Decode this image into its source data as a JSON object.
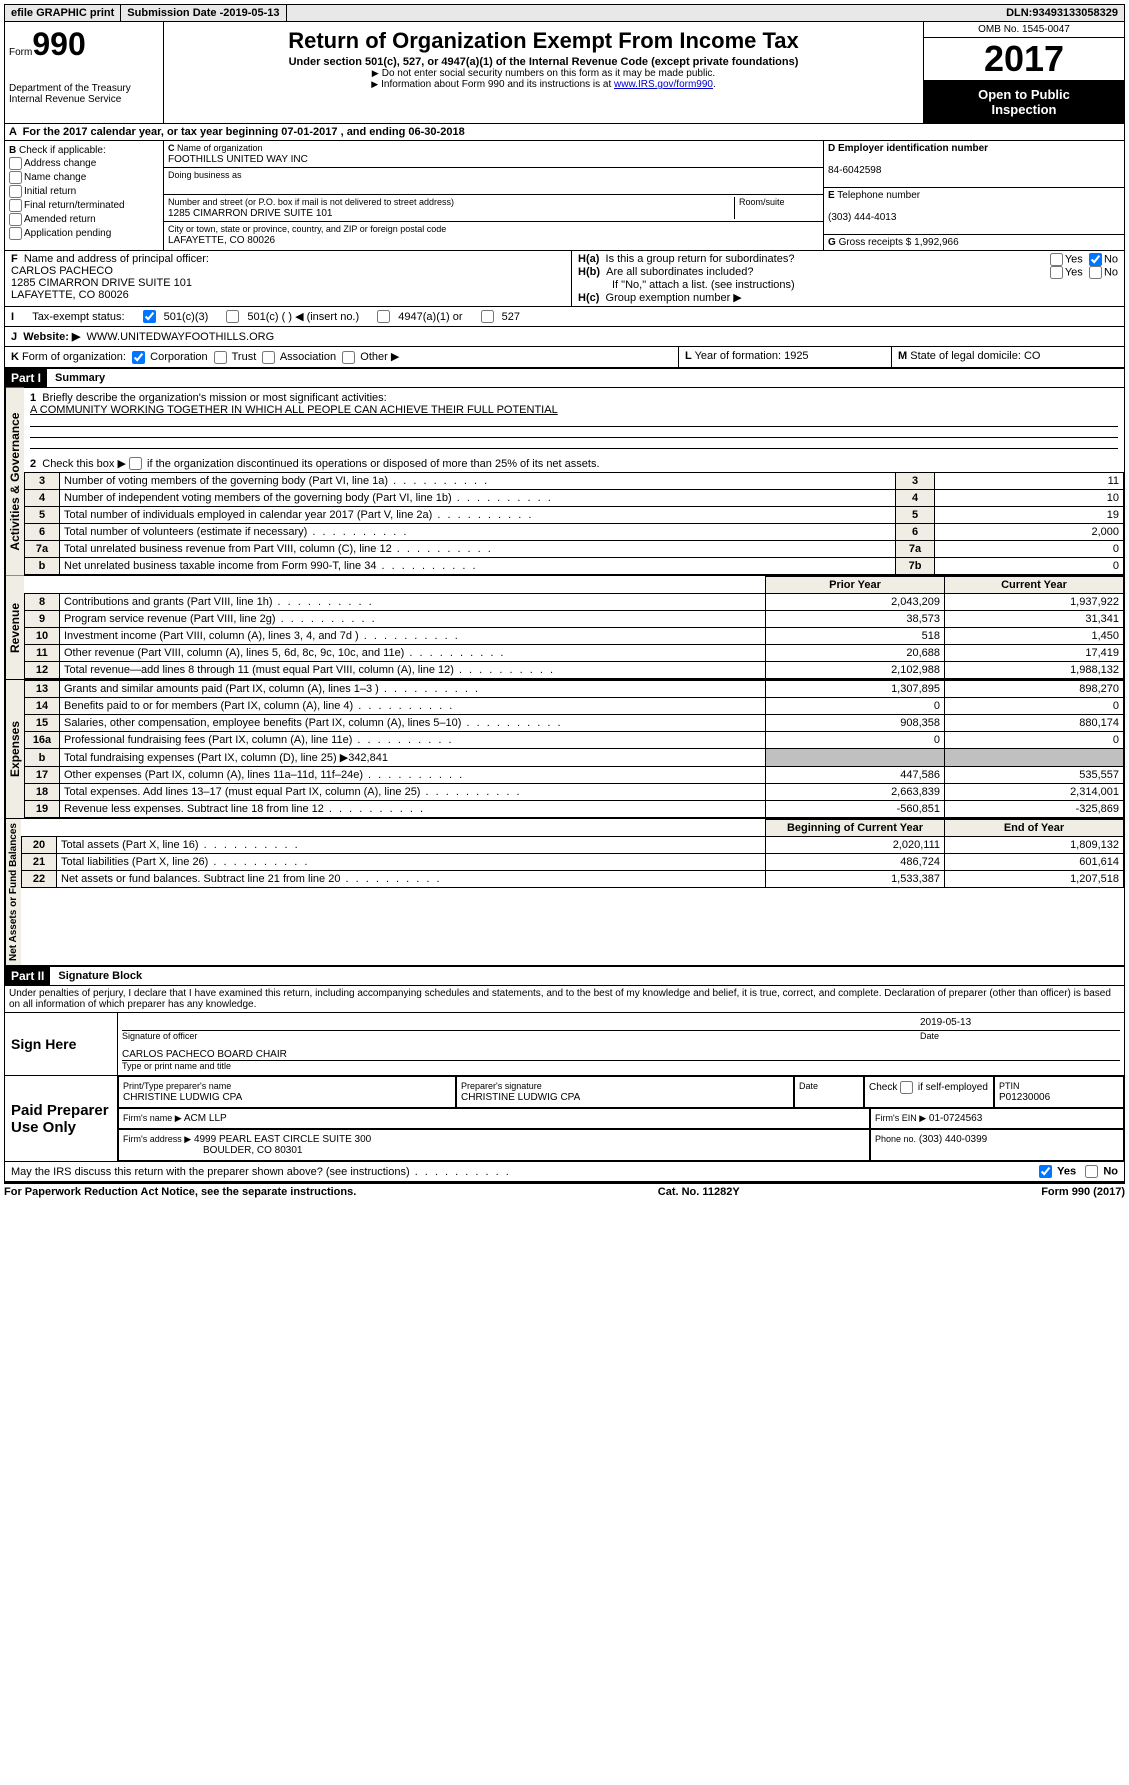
{
  "topbar": {
    "efile": "efile GRAPHIC print",
    "submission_label": "Submission Date - ",
    "submission_date": "2019-05-13",
    "dln_label": "DLN: ",
    "dln": "93493133058329"
  },
  "header": {
    "form_word": "Form",
    "form_num": "990",
    "dept1": "Department of the Treasury",
    "dept2": "Internal Revenue Service",
    "title": "Return of Organization Exempt From Income Tax",
    "sub": "Under section 501(c), 527, or 4947(a)(1) of the Internal Revenue Code (except private foundations)",
    "note1": "Do not enter social security numbers on this form as it may be made public.",
    "note2_a": "Information about Form 990 and its instructions is at ",
    "note2_link": "www.IRS.gov/form990",
    "omb": "OMB No. 1545-0047",
    "year": "2017",
    "open1": "Open to Public",
    "open2": "Inspection"
  },
  "line_a": "For the 2017 calendar year, or tax year beginning 07-01-2017    , and ending 06-30-2018",
  "box_b": {
    "title": "Check if applicable:",
    "opts": [
      "Address change",
      "Name change",
      "Initial return",
      "Final return/terminated",
      "Amended return",
      "Application pending"
    ]
  },
  "box_c": {
    "name_lbl": "Name of organization",
    "name": "FOOTHILLS UNITED WAY INC",
    "dba_lbl": "Doing business as",
    "dba": "",
    "street_lbl": "Number and street (or P.O. box if mail is not delivered to street address)",
    "room_lbl": "Room/suite",
    "street": "1285 CIMARRON DRIVE SUITE 101",
    "city_lbl": "City or town, state or province, country, and ZIP or foreign postal code",
    "city": "LAFAYETTE, CO  80026"
  },
  "box_d": {
    "lbl": "Employer identification number",
    "val": "84-6042598"
  },
  "box_e": {
    "lbl": "Telephone number",
    "val": "(303) 444-4013"
  },
  "box_g": {
    "lbl": "Gross receipts $",
    "val": "1,992,966"
  },
  "box_f": {
    "lbl": "Name and address of principal officer:",
    "name": "CARLOS PACHECO",
    "addr1": "1285 CIMARRON DRIVE SUITE 101",
    "addr2": "LAFAYETTE, CO  80026"
  },
  "box_h": {
    "a": "Is this a group return for subordinates?",
    "b": "Are all subordinates included?",
    "b_note": "If \"No,\" attach a list. (see instructions)",
    "c": "Group exemption number ▶",
    "yes": "Yes",
    "no": "No"
  },
  "line_i": {
    "lbl": "Tax-exempt status:",
    "o1": "501(c)(3)",
    "o2": "501(c) (  ) ◀ (insert no.)",
    "o3": "4947(a)(1) or",
    "o4": "527"
  },
  "line_j": {
    "lbl": "Website: ▶",
    "val": "WWW.UNITEDWAYFOOTHILLS.ORG"
  },
  "line_k": {
    "lbl": "Form of organization:",
    "opts": [
      "Corporation",
      "Trust",
      "Association",
      "Other ▶"
    ]
  },
  "line_l": {
    "lbl": "Year of formation:",
    "val": "1925"
  },
  "line_m": {
    "lbl": "State of legal domicile:",
    "val": "CO"
  },
  "part1": {
    "hdr": "Part I",
    "title": "Summary",
    "vtab1": "Activities & Governance",
    "l1": "Briefly describe the organization's mission or most significant activities:",
    "l1v": "A COMMUNITY WORKING TOGETHER IN WHICH ALL PEOPLE CAN ACHIEVE THEIR FULL POTENTIAL",
    "l2": "Check this box ▶        if the organization discontinued its operations or disposed of more than 25% of its net assets.",
    "rows_gov": [
      {
        "n": "3",
        "d": "Number of voting members of the governing body (Part VI, line 1a)",
        "b": "3",
        "v": "11"
      },
      {
        "n": "4",
        "d": "Number of independent voting members of the governing body (Part VI, line 1b)",
        "b": "4",
        "v": "10"
      },
      {
        "n": "5",
        "d": "Total number of individuals employed in calendar year 2017 (Part V, line 2a)",
        "b": "5",
        "v": "19"
      },
      {
        "n": "6",
        "d": "Total number of volunteers (estimate if necessary)",
        "b": "6",
        "v": "2,000"
      },
      {
        "n": "7a",
        "d": "Total unrelated business revenue from Part VIII, column (C), line 12",
        "b": "7a",
        "v": "0"
      },
      {
        "n": "b",
        "d": "Net unrelated business taxable income from Form 990-T, line 34",
        "b": "7b",
        "v": "0"
      }
    ],
    "vtab2": "Revenue",
    "col_py": "Prior Year",
    "col_cy": "Current Year",
    "rows_rev": [
      {
        "n": "8",
        "d": "Contributions and grants (Part VIII, line 1h)",
        "py": "2,043,209",
        "cy": "1,937,922"
      },
      {
        "n": "9",
        "d": "Program service revenue (Part VIII, line 2g)",
        "py": "38,573",
        "cy": "31,341"
      },
      {
        "n": "10",
        "d": "Investment income (Part VIII, column (A), lines 3, 4, and 7d )",
        "py": "518",
        "cy": "1,450"
      },
      {
        "n": "11",
        "d": "Other revenue (Part VIII, column (A), lines 5, 6d, 8c, 9c, 10c, and 11e)",
        "py": "20,688",
        "cy": "17,419"
      },
      {
        "n": "12",
        "d": "Total revenue—add lines 8 through 11 (must equal Part VIII, column (A), line 12)",
        "py": "2,102,988",
        "cy": "1,988,132"
      }
    ],
    "vtab3": "Expenses",
    "rows_exp": [
      {
        "n": "13",
        "d": "Grants and similar amounts paid (Part IX, column (A), lines 1–3 )",
        "py": "1,307,895",
        "cy": "898,270"
      },
      {
        "n": "14",
        "d": "Benefits paid to or for members (Part IX, column (A), line 4)",
        "py": "0",
        "cy": "0"
      },
      {
        "n": "15",
        "d": "Salaries, other compensation, employee benefits (Part IX, column (A), lines 5–10)",
        "py": "908,358",
        "cy": "880,174"
      },
      {
        "n": "16a",
        "d": "Professional fundraising fees (Part IX, column (A), line 11e)",
        "py": "0",
        "cy": "0"
      },
      {
        "n": "b",
        "d": "Total fundraising expenses (Part IX, column (D), line 25) ▶342,841",
        "py": "",
        "cy": "",
        "shade": true
      },
      {
        "n": "17",
        "d": "Other expenses (Part IX, column (A), lines 11a–11d, 11f–24e)",
        "py": "447,586",
        "cy": "535,557"
      },
      {
        "n": "18",
        "d": "Total expenses. Add lines 13–17 (must equal Part IX, column (A), line 25)",
        "py": "2,663,839",
        "cy": "2,314,001"
      },
      {
        "n": "19",
        "d": "Revenue less expenses. Subtract line 18 from line 12",
        "py": "-560,851",
        "cy": "-325,869"
      }
    ],
    "vtab4": "Net Assets or Fund Balances",
    "col_by": "Beginning of Current Year",
    "col_ey": "End of Year",
    "rows_net": [
      {
        "n": "20",
        "d": "Total assets (Part X, line 16)",
        "py": "2,020,111",
        "cy": "1,809,132"
      },
      {
        "n": "21",
        "d": "Total liabilities (Part X, line 26)",
        "py": "486,724",
        "cy": "601,614"
      },
      {
        "n": "22",
        "d": "Net assets or fund balances. Subtract line 21 from line 20",
        "py": "1,533,387",
        "cy": "1,207,518"
      }
    ]
  },
  "part2": {
    "hdr": "Part II",
    "title": "Signature Block",
    "perjury": "Under penalties of perjury, I declare that I have examined this return, including accompanying schedules and statements, and to the best of my knowledge and belief, it is true, correct, and complete. Declaration of preparer (other than officer) is based on all information of which preparer has any knowledge.",
    "sign_here": "Sign Here",
    "sig_officer": "Signature of officer",
    "date_lbl": "Date",
    "date_val": "2019-05-13",
    "name_title": "CARLOS PACHECO BOARD CHAIR",
    "name_title_lbl": "Type or print name and title",
    "paid": "Paid Preparer Use Only",
    "prep_name_lbl": "Print/Type preparer's name",
    "prep_name": "CHRISTINE LUDWIG CPA",
    "prep_sig_lbl": "Preparer's signature",
    "prep_sig": "CHRISTINE LUDWIG CPA",
    "check_self": "Check         if self-employed",
    "ptin_lbl": "PTIN",
    "ptin": "P01230006",
    "firm_name_lbl": "Firm's name    ▶",
    "firm_name": "ACM LLP",
    "firm_ein_lbl": "Firm's EIN ▶",
    "firm_ein": "01-0724563",
    "firm_addr_lbl": "Firm's address ▶",
    "firm_addr1": "4999 PEARL EAST CIRCLE SUITE 300",
    "firm_addr2": "BOULDER, CO  80301",
    "phone_lbl": "Phone no.",
    "phone": "(303) 440-0399",
    "discuss": "May the IRS discuss this return with the preparer shown above? (see instructions)",
    "yes": "Yes",
    "no": "No"
  },
  "footer": {
    "left": "For Paperwork Reduction Act Notice, see the separate instructions.",
    "mid": "Cat. No. 11282Y",
    "right": "Form 990 (2017)"
  }
}
